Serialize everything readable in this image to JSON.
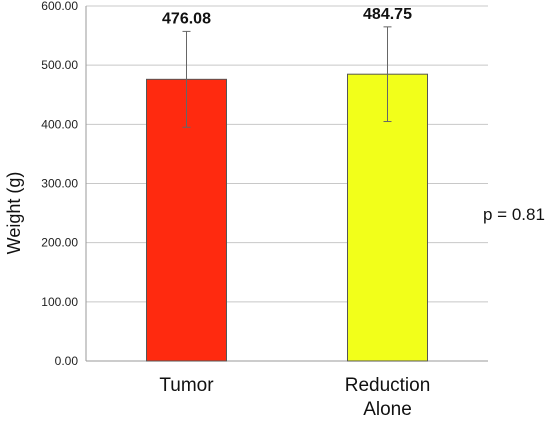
{
  "chart_data": {
    "type": "bar",
    "categories": [
      "Tumor",
      "Reduction Alone"
    ],
    "category_lines": [
      [
        "Tumor"
      ],
      [
        "Reduction",
        "Alone"
      ]
    ],
    "values": [
      476.08,
      484.75
    ],
    "value_labels": [
      "476.08",
      "484.75"
    ],
    "error": [
      81,
      80
    ],
    "colors": [
      "#ff2a0f",
      "#f2ff1a"
    ],
    "bar_edge_color": "#555555",
    "ylabel": "Weight (g)",
    "xlabel": "",
    "title": "",
    "ylim": [
      0,
      600
    ],
    "yticks": [
      0,
      100,
      200,
      300,
      400,
      500,
      600
    ],
    "ytick_labels": [
      "0.00",
      "100.00",
      "200.00",
      "300.00",
      "400.00",
      "500.00",
      "600.00"
    ],
    "grid": true,
    "annotation": "p = 0.81"
  }
}
